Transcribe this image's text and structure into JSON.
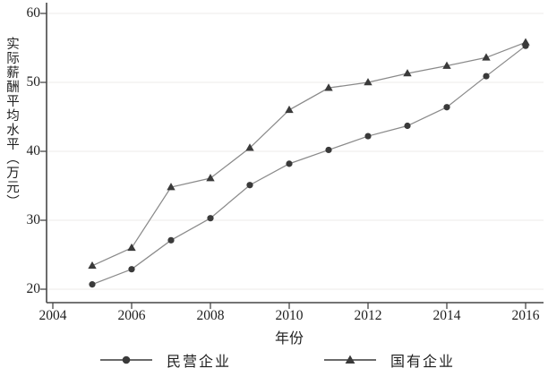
{
  "chart_data": {
    "type": "line",
    "title": "",
    "xlabel": "年份",
    "ylabel": "实际薪酬平均水平（万元）",
    "x": [
      2005,
      2006,
      2007,
      2008,
      2009,
      2010,
      2011,
      2012,
      2013,
      2014,
      2015,
      2016
    ],
    "x_ticks": [
      2004,
      2006,
      2008,
      2010,
      2012,
      2014,
      2016
    ],
    "y_ticks": [
      20,
      30,
      40,
      50,
      60
    ],
    "xlim": [
      2004,
      2016.5
    ],
    "ylim": [
      20,
      60
    ],
    "grid": "horizontal-faint",
    "legend_position": "bottom",
    "series": [
      {
        "name": "民营企业",
        "marker": "circle",
        "values": [
          20.7,
          22.9,
          27.1,
          30.3,
          35.1,
          38.2,
          40.2,
          42.2,
          43.7,
          46.4,
          50.9,
          55.3
        ]
      },
      {
        "name": "国有企业",
        "marker": "triangle",
        "values": [
          23.4,
          26.0,
          34.8,
          36.1,
          40.5,
          46.0,
          49.2,
          50.0,
          51.3,
          52.4,
          53.6,
          55.8
        ]
      }
    ]
  },
  "colors": {
    "background": "#ffffff",
    "axis": "#474747",
    "grid": "#f1efed",
    "series_line": "#8a8a8a",
    "marker": "#3a3a3a",
    "legend_line": "#3a3a3a",
    "text": "#1f1f1f"
  }
}
